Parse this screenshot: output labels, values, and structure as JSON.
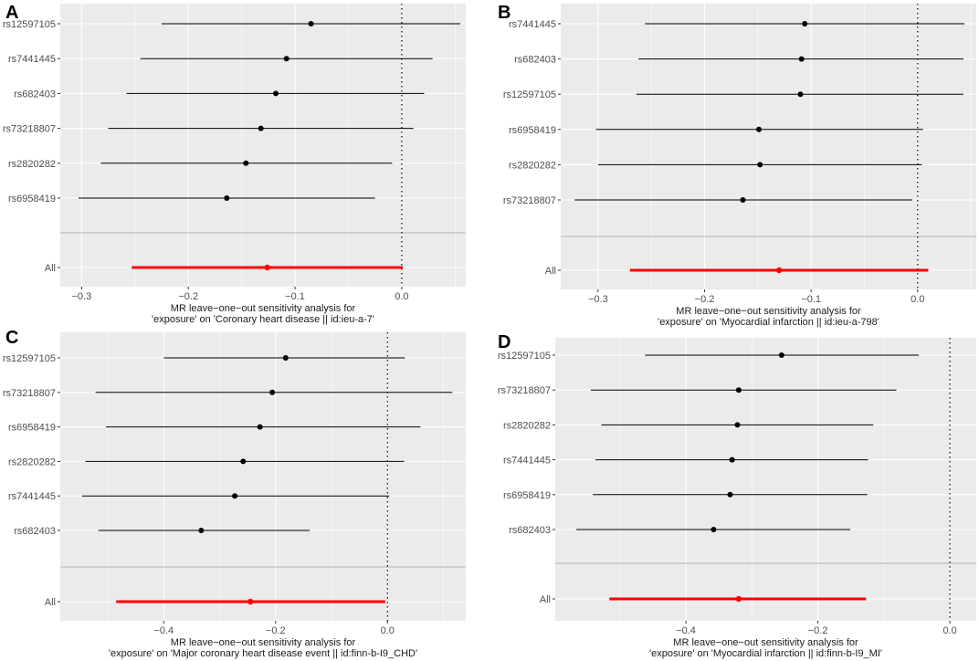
{
  "chart_data": [
    {
      "panel_label": "A",
      "type": "forest",
      "snps": [
        "rs12597105",
        "rs7441445",
        "rs682403",
        "rs73218807",
        "rs2820282",
        "rs6958419"
      ],
      "estimates": [
        -0.085,
        -0.108,
        -0.118,
        -0.132,
        -0.146,
        -0.164
      ],
      "ci_lower": [
        -0.225,
        -0.245,
        -0.258,
        -0.275,
        -0.282,
        -0.303
      ],
      "ci_upper": [
        0.055,
        0.029,
        0.021,
        0.011,
        -0.009,
        -0.025
      ],
      "overall": {
        "label": "All",
        "estimate": -0.126,
        "ci_lower": -0.253,
        "ci_upper": 0.001
      },
      "xlim": [
        -0.32,
        0.06
      ],
      "xticks": [
        -0.3,
        -0.2,
        -0.1,
        0.0
      ],
      "xtick_labels": [
        "−0.3",
        "−0.2",
        "−0.1",
        "0.0"
      ],
      "xlabel_line1": "MR leave−one−out sensitivity analysis for",
      "xlabel_line2": "'exposure' on 'Coronary heart disease || id:ieu-a-7'"
    },
    {
      "panel_label": "B",
      "type": "forest",
      "snps": [
        "rs7441445",
        "rs682403",
        "rs12597105",
        "rs6958419",
        "rs2820282",
        "rs73218807"
      ],
      "estimates": [
        -0.106,
        -0.109,
        -0.11,
        -0.149,
        -0.148,
        -0.164
      ],
      "ci_lower": [
        -0.256,
        -0.262,
        -0.264,
        -0.302,
        -0.3,
        -0.322
      ],
      "ci_upper": [
        0.044,
        0.043,
        0.043,
        0.005,
        0.004,
        -0.005
      ],
      "overall": {
        "label": "All",
        "estimate": -0.13,
        "ci_lower": -0.27,
        "ci_upper": 0.01
      },
      "xlim": [
        -0.335,
        0.055
      ],
      "xticks": [
        -0.3,
        -0.2,
        -0.1,
        0.0
      ],
      "xtick_labels": [
        "−0.3",
        "−0.2",
        "−0.1",
        "0.0"
      ],
      "xlabel_line1": "MR leave−one−out sensitivity analysis for",
      "xlabel_line2": "'exposure' on 'Myocardial infarction || id:ieu-a-798'"
    },
    {
      "panel_label": "C",
      "type": "forest",
      "snps": [
        "rs12597105",
        "rs73218807",
        "rs6958419",
        "rs2820282",
        "rs7441445",
        "rs682403"
      ],
      "estimates": [
        -0.182,
        -0.206,
        -0.228,
        -0.258,
        -0.273,
        -0.333
      ],
      "ci_lower": [
        -0.4,
        -0.522,
        -0.503,
        -0.54,
        -0.546,
        -0.517
      ],
      "ci_upper": [
        0.031,
        0.116,
        0.059,
        0.03,
        0.003,
        -0.139
      ],
      "overall": {
        "label": "All",
        "estimate": -0.245,
        "ci_lower": -0.485,
        "ci_upper": -0.004
      },
      "xlim": [
        -0.585,
        0.14
      ],
      "xticks": [
        -0.4,
        -0.2,
        0.0
      ],
      "xtick_labels": [
        "−0.4",
        "−0.2",
        "0.0"
      ],
      "xlabel_line1": "MR leave−one−out sensitivity analysis for",
      "xlabel_line2": "'exposure' on 'Major coronary heart disease event || id:finn-b-I9_CHD'"
    },
    {
      "panel_label": "D",
      "type": "forest",
      "snps": [
        "rs12597105",
        "rs73218807",
        "rs2820282",
        "rs7441445",
        "rs6958419",
        "rs682403"
      ],
      "estimates": [
        -0.255,
        -0.32,
        -0.322,
        -0.33,
        -0.333,
        -0.358
      ],
      "ci_lower": [
        -0.462,
        -0.544,
        -0.528,
        -0.537,
        -0.541,
        -0.566
      ],
      "ci_upper": [
        -0.047,
        -0.081,
        -0.116,
        -0.124,
        -0.125,
        -0.151
      ],
      "overall": {
        "label": "All",
        "estimate": -0.32,
        "ci_lower": -0.516,
        "ci_upper": -0.127
      },
      "xlim": [
        -0.598,
        0.04
      ],
      "xticks": [
        -0.4,
        -0.2,
        0.0
      ],
      "xtick_labels": [
        "−0.4",
        "−0.2",
        "0.0"
      ],
      "xlabel_line1": "MR leave−one−out sensitivity analysis for",
      "xlabel_line2": "'exposure' on 'Myocardial infarction || id:finn-b-I9_MI'"
    }
  ],
  "colors": {
    "panel_bg": "#ebebeb",
    "grid": "#ffffff",
    "snp_point": "#000000",
    "overall": "#ff0000",
    "separator": "#bebebe"
  }
}
